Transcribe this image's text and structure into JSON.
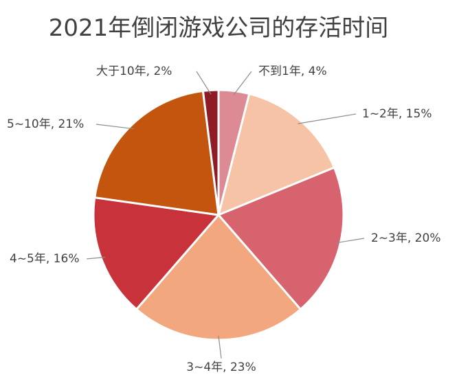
{
  "chart_data": {
    "type": "pie",
    "title": "2021年倒闭游戏公司的存活时间",
    "start_angle_deg": 0,
    "direction": "clockwise",
    "slices": [
      {
        "label": "不到1年, 4%",
        "value": 4,
        "color": "#dc8a94"
      },
      {
        "label": "1~2年, 15%",
        "value": 15,
        "color": "#f7c3a6"
      },
      {
        "label": "2~3年, 20%",
        "value": 20,
        "color": "#d6636d"
      },
      {
        "label": "3~4年, 23%",
        "value": 23,
        "color": "#f2a77e"
      },
      {
        "label": "4~5年, 16%",
        "value": 16,
        "color": "#c8323a"
      },
      {
        "label": "5~10年, 21%",
        "value": 21,
        "color": "#c4550f"
      },
      {
        "label": "大于10年, 2%",
        "value": 2,
        "color": "#8e1b26"
      }
    ]
  }
}
